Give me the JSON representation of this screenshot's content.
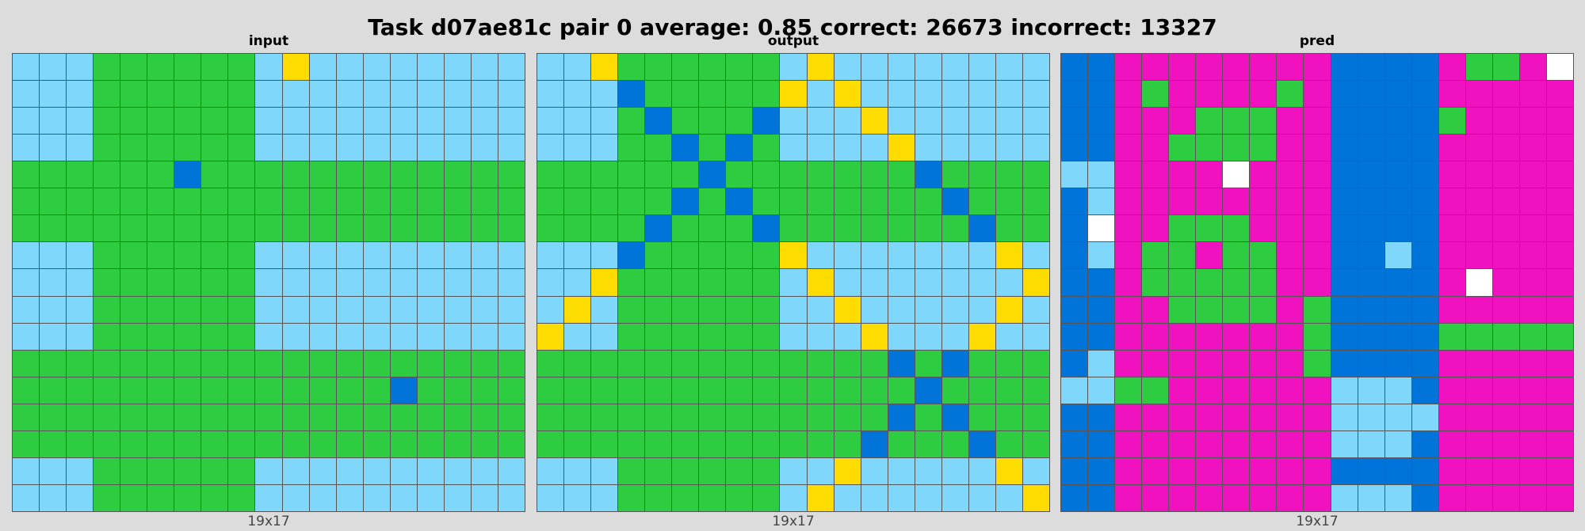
{
  "title": "Task d07ae81c pair 0 average: 0.85 correct: 26673 incorrect: 13327",
  "palette": {
    "L": "#7fd8fb",
    "G": "#2ecc40",
    "B": "#0074d9",
    "Y": "#ffdc00",
    "M": "#f012be",
    "W": "#ffffff"
  },
  "panels": [
    {
      "label": "input",
      "footer": "19x17",
      "rows": [
        "LLLGGGGGGLYLLLLLLLL",
        "LLLGGGGGGLLLLLLLLLL",
        "LLLGGGGGGLLLLLLLLLL",
        "LLLGGGGGGLLLLLLLLLL",
        "GGGGGGBGGGGGGGGGGGG",
        "GGGGGGGGGGGGGGGGGGG",
        "GGGGGGGGGGGGGGGGGGG",
        "LLLGGGGGGLLLLLLLLLL",
        "LLLGGGGGGLLLLLLLLLL",
        "LLLGGGGGGLLLLLLLLLL",
        "LLLGGGGGGLLLLLLLLLL",
        "GGGGGGGGGGGGGGGGGGG",
        "GGGGGGGGGGGGGGBGGGG",
        "GGGGGGGGGGGGGGGGGGG",
        "GGGGGGGGGGGGGGGGGGG",
        "LLLGGGGGGLLLLLLLLLL",
        "LLLGGGGGGLLLLLLLLLL"
      ]
    },
    {
      "label": "output",
      "footer": "19x17",
      "rows": [
        "LLYGGGGGGLYLLLLLLLL",
        "LLLBGGGGGYLYLLLLLLL",
        "LLLGBGGGBLLLYLLLLLL",
        "LLLGGBGBGLLLLYLLLLL",
        "GGGGGGBGGGGGGGBGGGG",
        "GGGGGBGBGGGGGGGBGGG",
        "GGGGBGGGBGGGGGGGBGG",
        "LLLBGGGGGYLLLLLLLYL",
        "LLYGGGGGGLYLLLLLLLY",
        "LYLGGGGGGLLYLLLLLYL",
        "YLLGGGGGGLLLYLLLYLL",
        "GGGGGGGGGGGGGBGBGGG",
        "GGGGGGGGGGGGGGBGGGG",
        "GGGGGGGGGGGGGBGBGGG",
        "GGGGGGGGGGGGBGGGBGG",
        "LLLGGGGGGLLYLLLLLYL",
        "LLLGGGGGGLYLLLLLLLY"
      ]
    },
    {
      "label": "pred",
      "footer": "19x17",
      "rows": [
        "BBMMMMMMMMBBBBMGGMW",
        "BBMGMMMMGMBBBBMMMMM",
        "BBMMMGGGMMBBBBGMMMM",
        "BBMMGGGGMMBBBBMMMMM",
        "LLMMMMWMMMBBBBMMMMM",
        "BLMMMMMMMMBBBBMMMMM",
        "BWMMGGGMMMBBBBMMMMM",
        "BLMGGMGGMMBBLBMMMMM",
        "BBMGGGGGMMBBBBMWMMM",
        "BBMMGGGGMGBBBBMMMMM",
        "BBMMMMMMMGBBBBGGGGG",
        "BLMMMMMMMGBBBBMMMMM",
        "LLGGMMMMMMLLLBMMMMM",
        "BBMMMMMMMMLLLLMMMMM",
        "BBMMMMMMMMLLLBMMMMM",
        "BBMMMMMMMMBBBBMMMMM",
        "BBMMMMMMMMLLLBMMMMM"
      ]
    }
  ]
}
